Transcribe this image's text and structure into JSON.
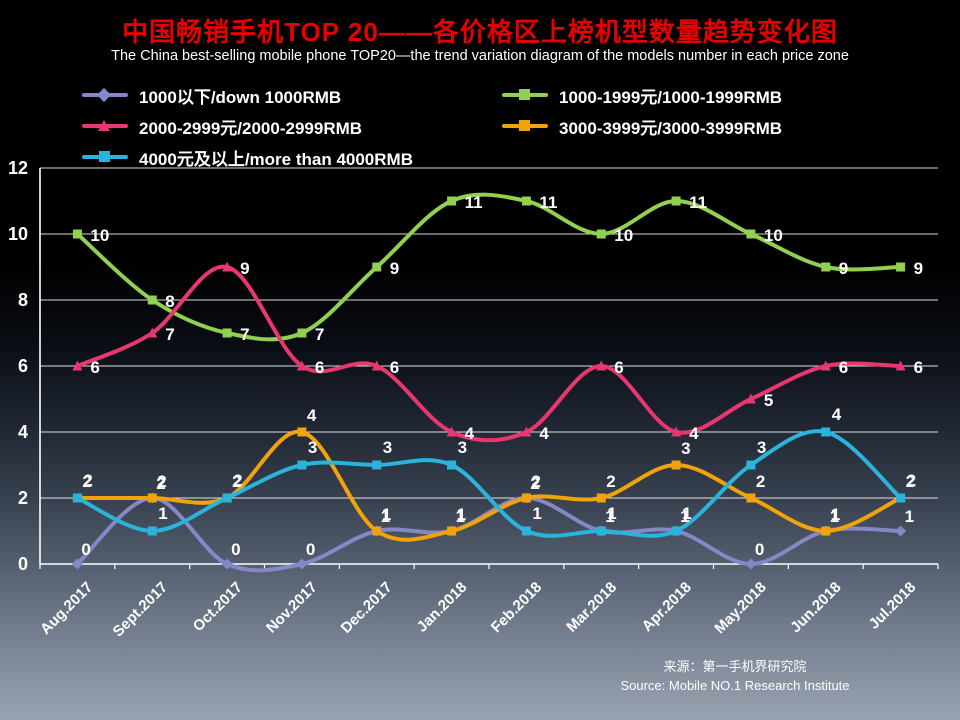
{
  "title": "中国畅销手机TOP 20——各价格区上榜机型数量趋势变化图",
  "subtitle": "The China best-selling mobile phone TOP20—the trend variation diagram of the models number in each price zone",
  "source": {
    "line1": "来源：第一手机界研究院",
    "line2": "Source: Mobile NO.1 Research Institute"
  },
  "colors": {
    "title_red": "#e60000",
    "text_white": "#ffffff",
    "series_purple": "#8687c6",
    "series_green": "#92d050",
    "series_pink": "#e8376f",
    "series_orange": "#f0a30a",
    "series_cyan": "#2ab4dc"
  },
  "chart_data": {
    "type": "line",
    "title": "中国畅销手机TOP 20——各价格区上榜机型数量趋势变化图",
    "subtitle": "The China best-selling mobile phone TOP20—the trend variation diagram of the models number in each price zone",
    "categories": [
      "Aug.2017",
      "Sept.2017",
      "Oct.2017",
      "Nov.2017",
      "Dec.2017",
      "Jan.2018",
      "Feb.2018",
      "Mar.2018",
      "Apr.2018",
      "May.2018",
      "Jun.2018",
      "Jul.2018"
    ],
    "series": [
      {
        "name": "1000以下/down 1000RMB",
        "color": "#8687c6",
        "marker": "diamond",
        "values": [
          0,
          2,
          0,
          0,
          1,
          1,
          2,
          1,
          1,
          0,
          1,
          1
        ]
      },
      {
        "name": "1000-1999元/1000-1999RMB",
        "color": "#92d050",
        "marker": "square",
        "values": [
          10,
          8,
          7,
          7,
          9,
          11,
          11,
          10,
          11,
          10,
          9,
          9
        ]
      },
      {
        "name": "2000-2999元/2000-2999RMB",
        "color": "#e8376f",
        "marker": "triangle",
        "values": [
          6,
          7,
          9,
          6,
          6,
          4,
          4,
          6,
          4,
          5,
          6,
          6
        ]
      },
      {
        "name": "3000-3999元/3000-3999RMB",
        "color": "#f0a30a",
        "marker": "square",
        "values": [
          2,
          2,
          2,
          4,
          1,
          1,
          2,
          2,
          3,
          2,
          1,
          2
        ]
      },
      {
        "name": "4000元及以上/more than 4000RMB",
        "color": "#2ab4dc",
        "marker": "square",
        "values": [
          2,
          1,
          2,
          3,
          3,
          3,
          1,
          1,
          1,
          3,
          4,
          2
        ]
      }
    ],
    "ylim": [
      0,
      12
    ],
    "ytick_step": 2,
    "yticks": [
      0,
      2,
      4,
      6,
      8,
      10,
      12
    ],
    "grid": true,
    "line_style": "smooth",
    "data_labels": true,
    "legend_position": "top-left-two-columns",
    "source": "来源：第一手机界研究院 / Source: Mobile NO.1 Research Institute"
  }
}
